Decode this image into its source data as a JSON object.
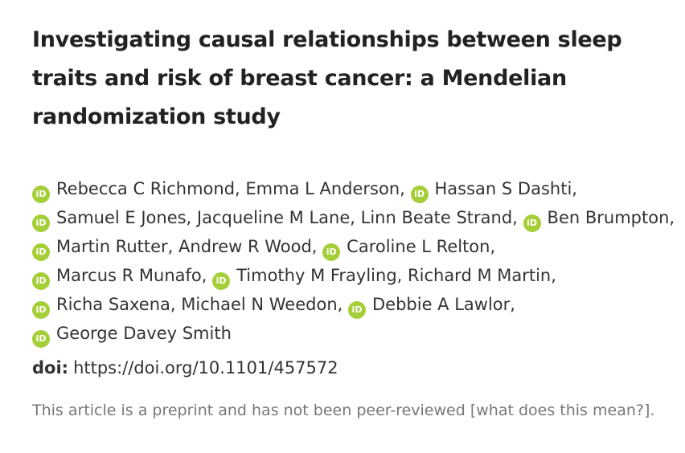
{
  "title": "Investigating causal relationships between sleep traits and risk of breast cancer: a Mendelian randomization study",
  "authors": [
    {
      "name": "Rebecca C Richmond,",
      "orcid": true
    },
    {
      "name": "Emma L Anderson,",
      "orcid": false
    },
    {
      "name": "Hassan S Dashti,",
      "orcid": true
    },
    {
      "name": "Samuel E Jones,",
      "orcid": true
    },
    {
      "name": "Jacqueline M Lane,",
      "orcid": false
    },
    {
      "name": "Linn Beate Strand,",
      "orcid": false
    },
    {
      "name": "Ben Brumpton,",
      "orcid": true
    },
    {
      "name": "Martin Rutter,",
      "orcid": true
    },
    {
      "name": "Andrew R Wood,",
      "orcid": false
    },
    {
      "name": "Caroline L Relton,",
      "orcid": true
    },
    {
      "name": "Marcus R Munafo,",
      "orcid": true
    },
    {
      "name": "Timothy M Frayling,",
      "orcid": true
    },
    {
      "name": "Richard M Martin,",
      "orcid": false
    },
    {
      "name": "Richa Saxena,",
      "orcid": true
    },
    {
      "name": "Michael N Weedon,",
      "orcid": false
    },
    {
      "name": "Debbie A Lawlor,",
      "orcid": true
    },
    {
      "name": "George Davey Smith",
      "orcid": true
    }
  ],
  "doi": {
    "label": "doi:",
    "url": "https://doi.org/10.1101/457572"
  },
  "notice": {
    "text": "This article is a preprint and has not been peer-reviewed",
    "link": "[what does this mean?]."
  }
}
